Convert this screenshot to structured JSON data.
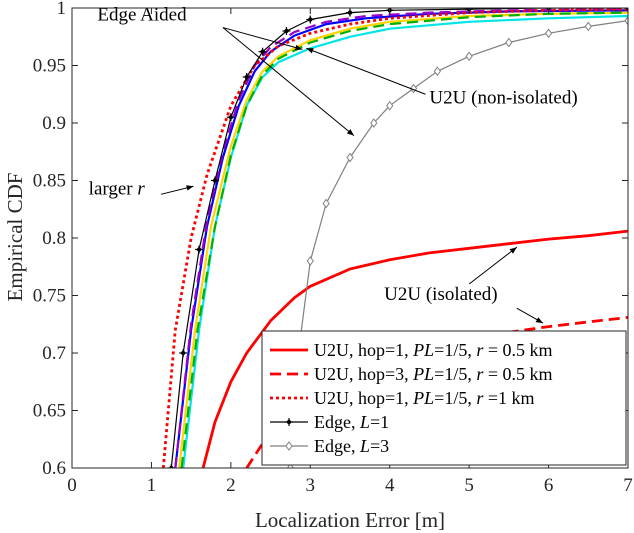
{
  "chart_data": {
    "type": "line",
    "xlabel": "Localization Error [m]",
    "ylabel": "Empirical CDF",
    "xlim": [
      0,
      7
    ],
    "ylim": [
      0.6,
      1.0
    ],
    "xticks": [
      0,
      1,
      2,
      3,
      4,
      5,
      6,
      7
    ],
    "yticks": [
      0.6,
      0.65,
      0.7,
      0.75,
      0.8,
      0.85,
      0.9,
      0.95,
      1
    ],
    "grid": false,
    "legend_position": "bottom-right",
    "series": [
      {
        "name": "U2U, hop=1, PL=1/5, r = 0.5 km",
        "legend": true,
        "color": "#ff0000",
        "style": "solid",
        "marker": "none",
        "x": [
          1.65,
          1.8,
          2.0,
          2.2,
          2.5,
          2.8,
          3.0,
          3.5,
          4.0,
          4.5,
          5.0,
          5.5,
          6.0,
          6.5,
          7.0
        ],
        "y": [
          0.6,
          0.64,
          0.675,
          0.7,
          0.728,
          0.748,
          0.758,
          0.773,
          0.781,
          0.787,
          0.791,
          0.795,
          0.799,
          0.802,
          0.806
        ]
      },
      {
        "name": "U2U, hop=3, PL=1/5, r = 0.5 km",
        "legend": true,
        "color": "#ff0000",
        "style": "dashed",
        "marker": "none",
        "x": [
          2.2,
          2.5,
          3.0,
          3.5,
          4.0,
          4.5,
          5.0,
          5.5,
          6.0,
          6.5,
          7.0
        ],
        "y": [
          0.6,
          0.632,
          0.663,
          0.682,
          0.696,
          0.705,
          0.712,
          0.718,
          0.723,
          0.727,
          0.731
        ]
      },
      {
        "name": "U2U, hop=1, PL=1/5, r =1 km",
        "legend": true,
        "color": "#ff0000",
        "style": "dotted",
        "marker": "none",
        "x": [
          1.15,
          1.3,
          1.5,
          1.7,
          2.0,
          2.3,
          2.6,
          3.0,
          3.5,
          4.0,
          5.0,
          6.0,
          7.0
        ],
        "y": [
          0.6,
          0.72,
          0.8,
          0.855,
          0.915,
          0.95,
          0.967,
          0.978,
          0.986,
          0.991,
          0.996,
          0.998,
          0.999
        ]
      },
      {
        "name": "Edge, L=1",
        "legend": true,
        "color": "#000000",
        "style": "solid",
        "marker": "asterisk",
        "x": [
          1.25,
          1.4,
          1.6,
          1.8,
          2.0,
          2.2,
          2.4,
          2.7,
          3.0,
          3.5,
          4.0,
          5.0,
          6.0,
          7.0
        ],
        "y": [
          0.6,
          0.7,
          0.79,
          0.85,
          0.905,
          0.94,
          0.962,
          0.98,
          0.99,
          0.996,
          0.998,
          0.999,
          1.0,
          1.0
        ]
      },
      {
        "name": "Edge, L=3",
        "legend": true,
        "color": "#7f7f7f",
        "style": "solid",
        "marker": "diamond",
        "x": [
          2.75,
          2.85,
          3.0,
          3.2,
          3.5,
          3.8,
          4.0,
          4.3,
          4.6,
          5.0,
          5.5,
          6.0,
          6.5,
          7.0
        ],
        "y": [
          0.6,
          0.7,
          0.78,
          0.83,
          0.87,
          0.9,
          0.915,
          0.93,
          0.945,
          0.958,
          0.97,
          0.978,
          0.984,
          0.989
        ]
      },
      {
        "name": "",
        "legend": false,
        "color": "#00e5e5",
        "style": "solid",
        "marker": "none",
        "x": [
          1.4,
          1.6,
          1.8,
          2.0,
          2.2,
          2.4,
          2.6,
          3.0,
          3.5,
          4.0,
          5.0,
          6.0,
          7.0
        ],
        "y": [
          0.6,
          0.72,
          0.81,
          0.87,
          0.915,
          0.94,
          0.953,
          0.965,
          0.975,
          0.982,
          0.988,
          0.991,
          0.993
        ]
      },
      {
        "name": "",
        "legend": false,
        "color": "#ffd400",
        "style": "solid",
        "marker": "none",
        "x": [
          1.35,
          1.55,
          1.75,
          2.0,
          2.2,
          2.4,
          2.6,
          3.0,
          3.5,
          4.0,
          5.0,
          6.0,
          7.0
        ],
        "y": [
          0.6,
          0.72,
          0.81,
          0.88,
          0.92,
          0.945,
          0.958,
          0.972,
          0.982,
          0.988,
          0.993,
          0.995,
          0.996
        ]
      },
      {
        "name": "",
        "legend": false,
        "color": "#00b000",
        "style": "dashed",
        "marker": "none",
        "x": [
          1.38,
          1.58,
          1.8,
          2.0,
          2.2,
          2.4,
          2.6,
          3.0,
          3.5,
          4.0,
          5.0,
          6.0,
          7.0
        ],
        "y": [
          0.6,
          0.72,
          0.81,
          0.872,
          0.915,
          0.942,
          0.956,
          0.97,
          0.98,
          0.986,
          0.992,
          0.995,
          0.996
        ]
      },
      {
        "name": "",
        "legend": false,
        "color": "#0000ff",
        "style": "solid",
        "marker": "none",
        "x": [
          1.3,
          1.5,
          1.7,
          1.9,
          2.1,
          2.3,
          2.5,
          2.8,
          3.2,
          3.7,
          4.5,
          5.5,
          7.0
        ],
        "y": [
          0.6,
          0.72,
          0.81,
          0.87,
          0.915,
          0.945,
          0.962,
          0.976,
          0.986,
          0.991,
          0.995,
          0.997,
          0.998
        ]
      },
      {
        "name": "",
        "legend": false,
        "color": "#9900cc",
        "style": "dashed",
        "marker": "none",
        "x": [
          1.3,
          1.5,
          1.7,
          1.9,
          2.1,
          2.3,
          2.5,
          2.8,
          3.2,
          3.7,
          4.5,
          5.5,
          7.0
        ],
        "y": [
          0.6,
          0.725,
          0.815,
          0.875,
          0.92,
          0.95,
          0.966,
          0.979,
          0.988,
          0.993,
          0.996,
          0.998,
          0.999
        ]
      }
    ],
    "annotations": [
      {
        "text": "Edge Aided",
        "x": 0.32,
        "y": 0.989,
        "arrows": [
          {
            "from": [
              1.9,
              0.983
            ],
            "to": [
              2.9,
              0.964
            ]
          },
          {
            "from": [
              1.9,
              0.983
            ],
            "to": [
              3.55,
              0.889
            ]
          }
        ]
      },
      {
        "text": "U2U (non-isolated)",
        "x": 4.5,
        "y": 0.917,
        "arrows": [
          {
            "from": [
              4.45,
              0.925
            ],
            "to": [
              2.95,
              0.965
            ]
          }
        ]
      },
      {
        "text": "larger r",
        "x": 0.21,
        "y": 0.838,
        "arrows": [
          {
            "from": [
              1.12,
              0.838
            ],
            "to": [
              1.53,
              0.845
            ]
          }
        ]
      },
      {
        "text": "U2U (isolated)",
        "x": 3.93,
        "y": 0.746,
        "arrows": [
          {
            "from": [
              5.0,
              0.76
            ],
            "to": [
              5.6,
              0.792
            ]
          },
          {
            "from": [
              5.6,
              0.739
            ],
            "to": [
              5.93,
              0.726
            ]
          }
        ]
      }
    ]
  }
}
